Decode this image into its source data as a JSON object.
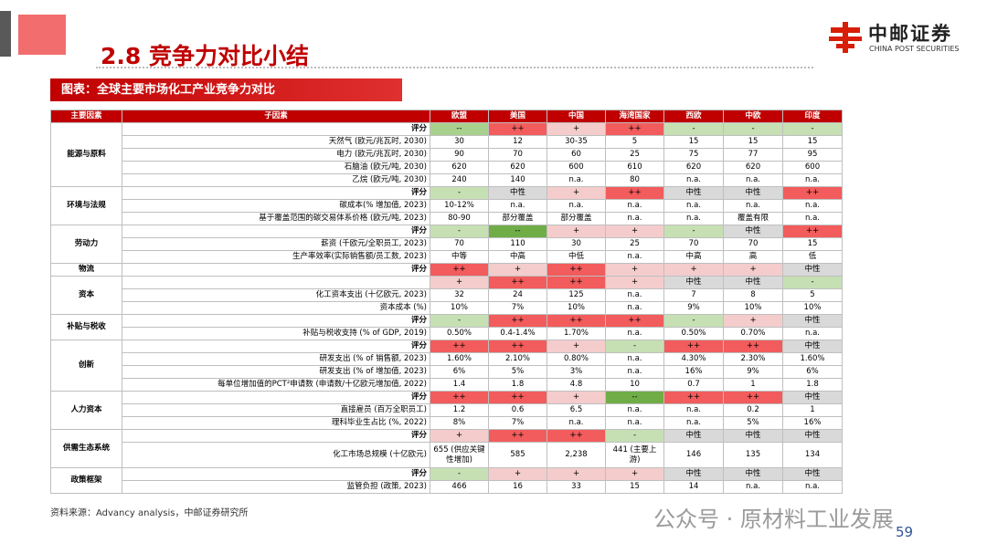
{
  "header": {
    "title": "2.8 竞争力对比小结",
    "logo_cn": "中邮证券",
    "logo_en": "CHINA POST SECURITIES"
  },
  "banner": "图表：全球主要市场化工产业竞争力对比",
  "table": {
    "header": [
      "主要因素",
      "子因素",
      "欧盟",
      "美国",
      "中国",
      "海湾国家",
      "西欧",
      "中欧",
      "印度"
    ],
    "groups": [
      {
        "factor": "能源与原料",
        "rows": [
          {
            "sub": "评分",
            "cells": [
              "--",
              "++",
              "+",
              "++",
              "-",
              "-",
              "-"
            ],
            "colors": [
              "#a9d18e",
              "#f25c5c",
              "#f4cccc",
              "#f25c5c",
              "#c6e0b4",
              "#c6e0b4",
              "#c6e0b4"
            ]
          },
          {
            "sub": "天然气 (欧元/兆瓦时, 2030)",
            "cells": [
              "30",
              "12",
              "30-35",
              "5",
              "15",
              "15",
              "15"
            ]
          },
          {
            "sub": "电力 (欧元/兆瓦时, 2030)",
            "cells": [
              "90",
              "70",
              "60",
              "25",
              "75",
              "77",
              "95"
            ]
          },
          {
            "sub": "石脑油 (欧元/吨, 2030)",
            "cells": [
              "620",
              "620",
              "600",
              "610",
              "620",
              "620",
              "600"
            ]
          },
          {
            "sub": "乙烷 (欧元/吨, 2030)",
            "cells": [
              "240",
              "140",
              "n.a.",
              "80",
              "n.a.",
              "n.a.",
              "n.a."
            ]
          }
        ]
      },
      {
        "factor": "环境与法规",
        "rows": [
          {
            "sub": "评分",
            "cells": [
              "-",
              "中性",
              "+",
              "++",
              "中性",
              "中性",
              "++"
            ],
            "colors": [
              "#c6e0b4",
              "#d9d9d9",
              "#f4cccc",
              "#f25c5c",
              "#d9d9d9",
              "#d9d9d9",
              "#f25c5c"
            ]
          },
          {
            "sub": "碳成本(% 增加值, 2023)",
            "cells": [
              "10-12%",
              "n.a.",
              "n.a.",
              "n.a.",
              "n.a.",
              "n.a.",
              "n.a."
            ]
          },
          {
            "sub": "基于覆盖范围的碳交易体系价格 (欧元/吨, 2023)",
            "cells": [
              "80-90",
              "部分覆盖",
              "部分覆盖",
              "n.a.",
              "n.a.",
              "覆盖有限",
              "n.a."
            ]
          }
        ]
      },
      {
        "factor": "劳动力",
        "rows": [
          {
            "sub": "评分",
            "cells": [
              "-",
              "--",
              "+",
              "+",
              "-",
              "中性",
              "++"
            ],
            "colors": [
              "#c6e0b4",
              "#70ad47",
              "#f4cccc",
              "#f4cccc",
              "#c6e0b4",
              "#d9d9d9",
              "#f25c5c"
            ]
          },
          {
            "sub": "薪资 (千欧元/全职员工, 2023)",
            "cells": [
              "70",
              "110",
              "30",
              "25",
              "70",
              "70",
              "15"
            ]
          },
          {
            "sub": "生产率效率(实际销售额/员工数, 2023)",
            "cells": [
              "中等",
              "中高",
              "中低",
              "n.a.",
              "中高",
              "高",
              "低"
            ]
          }
        ]
      },
      {
        "factor": "物流",
        "rows": [
          {
            "sub": "评分",
            "cells": [
              "++",
              "+",
              "++",
              "+",
              "+",
              "+",
              "中性"
            ],
            "colors": [
              "#f25c5c",
              "#f4cccc",
              "#f25c5c",
              "#f4cccc",
              "#f4cccc",
              "#f4cccc",
              "#d9d9d9"
            ]
          }
        ]
      },
      {
        "factor": "资本",
        "rows": [
          {
            "sub": null,
            "cells": [
              "+",
              "++",
              "++",
              "+",
              "中性",
              "中性",
              "-"
            ],
            "colors": [
              "#f4cccc",
              "#f25c5c",
              "#f25c5c",
              "#f4cccc",
              "#d9d9d9",
              "#d9d9d9",
              "#c6e0b4"
            ]
          },
          {
            "sub": "化工资本支出 (十亿欧元, 2023)",
            "cells": [
              "32",
              "24",
              "125",
              "n.a.",
              "7",
              "8",
              "5"
            ]
          },
          {
            "sub": "资本成本 (%)",
            "cells": [
              "10%",
              "7%",
              "10%",
              "n.a.",
              "9%",
              "10%",
              "10%"
            ]
          }
        ]
      },
      {
        "factor": "补贴与税收",
        "rows": [
          {
            "sub": "评分",
            "cells": [
              "-",
              "++",
              "++",
              "++",
              "-",
              "+",
              "中性"
            ],
            "colors": [
              "#c6e0b4",
              "#f25c5c",
              "#f25c5c",
              "#f25c5c",
              "#c6e0b4",
              "#f4cccc",
              "#d9d9d9"
            ]
          },
          {
            "sub": "补贴与税收支持 (% of GDP, 2019)",
            "cells": [
              "0.50%",
              "0.4-1.4%",
              "1.70%",
              "n.a.",
              "0.50%",
              "0.70%",
              "n.a."
            ]
          }
        ]
      },
      {
        "factor": "创新",
        "rows": [
          {
            "sub": "评分",
            "cells": [
              "++",
              "++",
              "+",
              "-",
              "++",
              "++",
              "中性"
            ],
            "colors": [
              "#f25c5c",
              "#f25c5c",
              "#f4cccc",
              "#c6e0b4",
              "#f25c5c",
              "#f25c5c",
              "#d9d9d9"
            ]
          },
          {
            "sub": "研发支出 (% of 销售额, 2023)",
            "cells": [
              "1.60%",
              "2.10%",
              "0.80%",
              "n.a.",
              "4.30%",
              "2.30%",
              "1.60%"
            ]
          },
          {
            "sub": "研发支出 (% of 增加值, 2023)",
            "cells": [
              "6%",
              "5%",
              "3%",
              "n.a.",
              "16%",
              "9%",
              "6%"
            ]
          },
          {
            "sub": "每单位增加值的PCT²申请数 (申请数/十亿欧元增加值, 2022)",
            "cells": [
              "1.4",
              "1.8",
              "4.8",
              "10",
              "0.7",
              "1",
              "1.8"
            ]
          }
        ]
      },
      {
        "factor": "人力资本",
        "rows": [
          {
            "sub": "评分",
            "cells": [
              "++",
              "++",
              "+",
              "--",
              "++",
              "++",
              "中性"
            ],
            "colors": [
              "#f25c5c",
              "#f25c5c",
              "#f4cccc",
              "#70ad47",
              "#f25c5c",
              "#f25c5c",
              "#d9d9d9"
            ]
          },
          {
            "sub": "直接雇员 (百万全职员工)",
            "cells": [
              "1.2",
              "0.6",
              "6.5",
              "n.a.",
              "n.a.",
              "0.2",
              "1"
            ]
          },
          {
            "sub": "理科毕业生占比 (%, 2022)",
            "cells": [
              "8%",
              "7%",
              "n.a.",
              "n.a.",
              "n.a.",
              "5%",
              "16%"
            ]
          }
        ]
      },
      {
        "factor": "供需生态系统",
        "rows": [
          {
            "sub": "评分",
            "cells": [
              "+",
              "++",
              "++",
              "-",
              "中性",
              "中性",
              "中性"
            ],
            "colors": [
              "#f4cccc",
              "#f25c5c",
              "#f25c5c",
              "#c6e0b4",
              "#d9d9d9",
              "#d9d9d9",
              "#d9d9d9"
            ]
          },
          {
            "sub": "化工市场总规模 (十亿欧元)",
            "cells": [
              "655 (供应关键性增加)",
              "585",
              "2,238",
              "441 (主要上游)",
              "146",
              "135",
              "134"
            ],
            "tall": true
          }
        ]
      },
      {
        "factor": "政策框架",
        "rows": [
          {
            "sub": "评分",
            "cells": [
              "-",
              "+",
              "+",
              "+",
              "中性",
              "中性",
              "中性"
            ],
            "colors": [
              "#c6e0b4",
              "#f4cccc",
              "#f4cccc",
              "#f4cccc",
              "#d9d9d9",
              "#d9d9d9",
              "#d9d9d9"
            ]
          },
          {
            "sub": "监管负担 (政策, 2023)",
            "cells": [
              "466",
              "16",
              "33",
              "15",
              "14",
              "n.a.",
              "n.a."
            ]
          }
        ]
      }
    ]
  },
  "source": "资料来源：Advancy analysis，中邮证券研究所",
  "watermark": "公众号 · 原材料工业发展",
  "page_number": "59"
}
